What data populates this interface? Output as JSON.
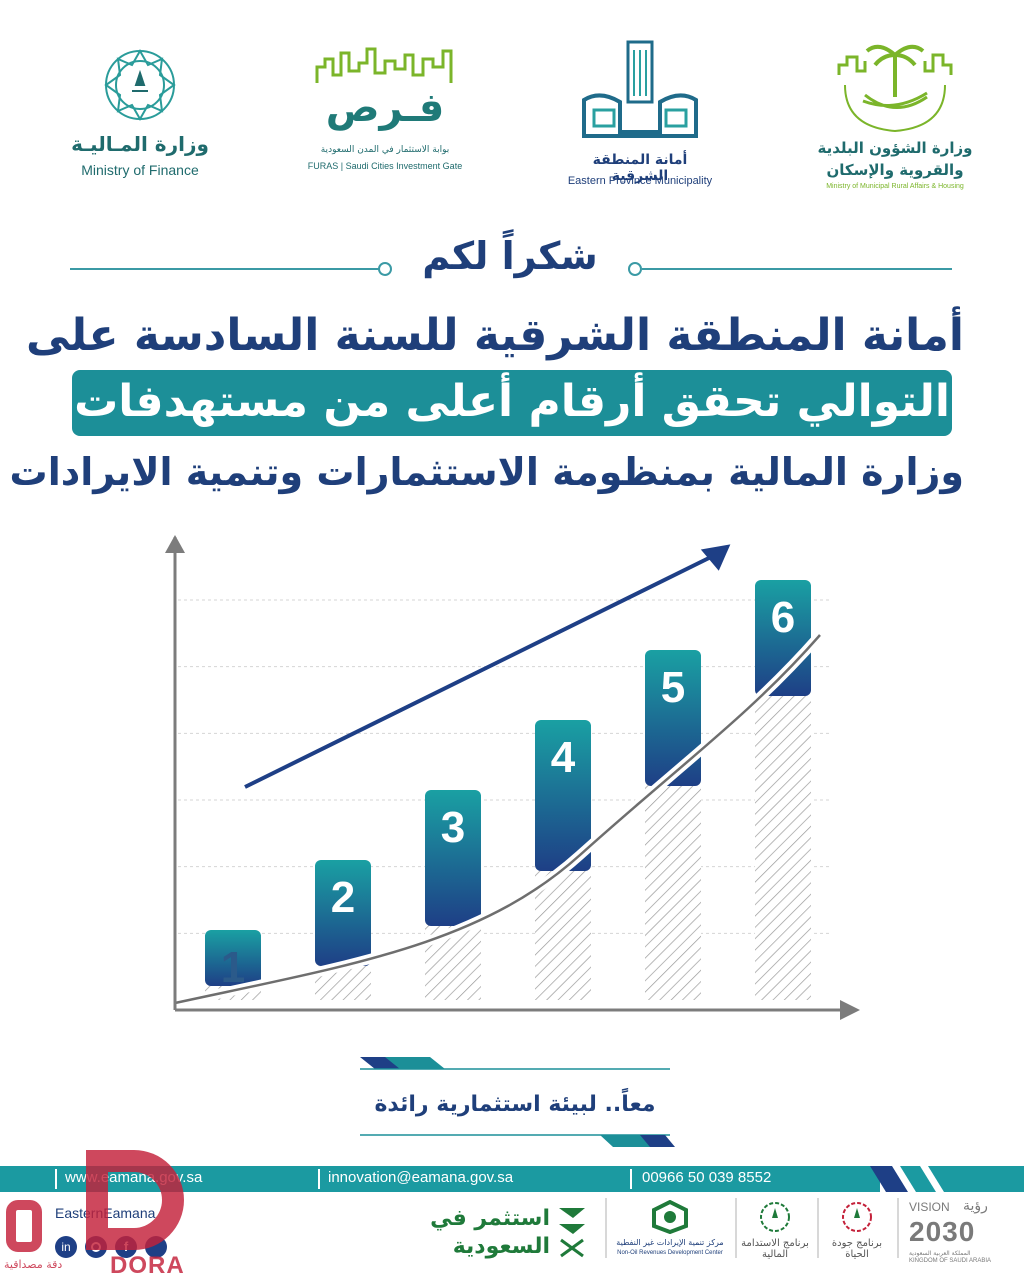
{
  "logos": {
    "ministry_finance": {
      "ar": "وزارة المـاليـة",
      "en": "Ministry of Finance"
    },
    "furas": {
      "ar": "فـرص",
      "sub_ar": "بوابة الاستثمار في المدن السعودية",
      "sub_en": "FURAS | Saudi Cities Investment Gate"
    },
    "eastern": {
      "ar": "أمانة المنطقة الشرقية",
      "en": "Eastern Province Municipality"
    },
    "momrah": {
      "ar_line1": "وزارة الشؤون البلدية",
      "ar_line2": "والقروية والإسكان",
      "en": "Ministry of Municipal Rural Affairs & Housing"
    }
  },
  "thanks": "شكراً لكم",
  "headline": {
    "line1": "أمانة المنطقة الشرقية للسنة السادسة على",
    "line2": "التوالي تحقق أرقام أعلى من مستهدفات",
    "line3": "وزارة المالية بمنظومة الاستثمارات وتنمية الايرادات"
  },
  "chart_data": {
    "type": "bar",
    "categories": [
      "1",
      "2",
      "3",
      "4",
      "5",
      "6"
    ],
    "values": [
      1,
      2,
      3,
      4,
      5,
      6
    ],
    "title": "",
    "xlabel": "",
    "ylabel": "",
    "grid": true
  },
  "tagline": "معاً.. لبيئة استثمارية رائدة",
  "footer": {
    "website": "www.eamana.gov.sa",
    "email": "innovation@eamana.gov.sa",
    "phone": "00966 50 039 8552",
    "handle": "EasternEamana"
  },
  "bottom_logos": {
    "invest": {
      "line1": "استثمر في",
      "line2": "السعودية"
    },
    "nonoil": {
      "ar": "مركز تنمية الإيرادات غير النفطية",
      "en": "Non-Oil Revenues Development Center"
    },
    "fiscal": {
      "ar": "برنامج الاستدامة المالية"
    },
    "quality": {
      "ar": "برنامج جودة الحياة"
    },
    "vision": {
      "label": "VISION",
      "ar": "رؤية",
      "year": "2030",
      "sub_ar": "المملكة العربية السعودية",
      "sub_en": "KINGDOM OF SAUDI ARABIA"
    }
  },
  "watermark": {
    "brand": "DORA",
    "ar": "دقة مصداقية"
  },
  "colors": {
    "navy": "#1f3f7a",
    "teal": "#1c8f98",
    "bar_top": "#1aa0a3",
    "bar_bottom": "#1e3f86",
    "green": "#7bb52a"
  }
}
